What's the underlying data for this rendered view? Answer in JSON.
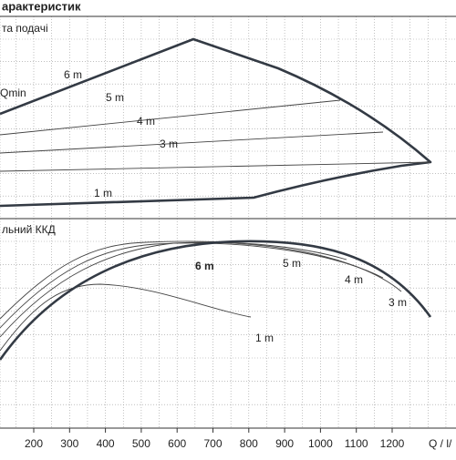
{
  "header": {
    "title": "арактеристик"
  },
  "upper_panel": {
    "title": "та подачі",
    "qmin_label": "Qmin",
    "curve_labels": [
      "6 m",
      "5 m",
      "4 m",
      "3 m",
      "1 m"
    ]
  },
  "lower_panel": {
    "title": "льний ККД",
    "curve_labels": [
      "6 m",
      "5 m",
      "4 m",
      "3 m",
      "1 m"
    ]
  },
  "x_axis": {
    "ticks": [
      "200",
      "300",
      "400",
      "500",
      "600",
      "700",
      "800",
      "900",
      "1000",
      "1100",
      "1200"
    ],
    "label": "Q / l/"
  }
}
